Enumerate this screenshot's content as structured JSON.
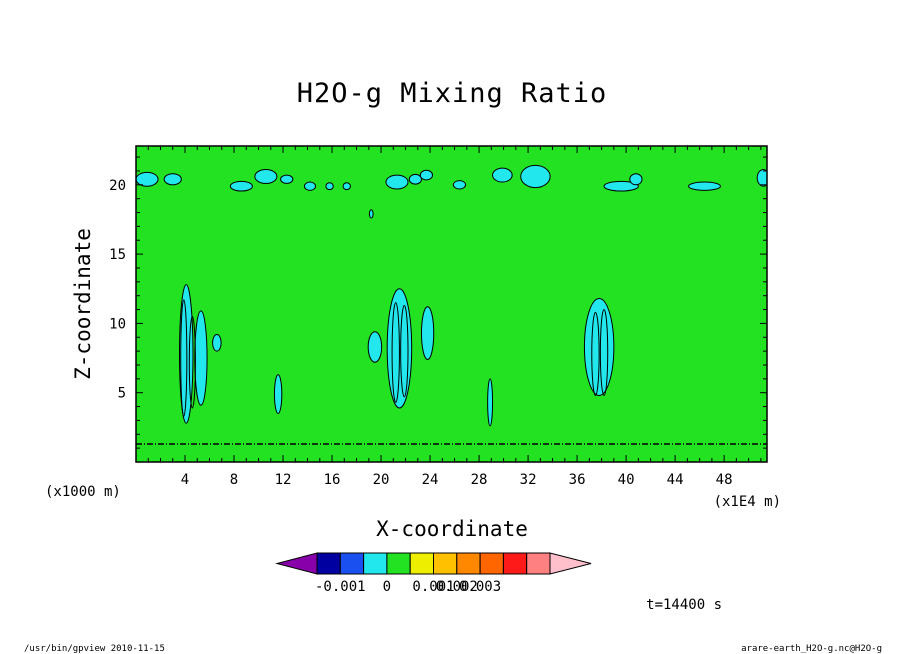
{
  "chart_data": {
    "type": "heatmap",
    "title": "H2O-g Mixing Ratio",
    "xlabel": "X-coordinate",
    "ylabel": "Z-coordinate",
    "x_unit_left": "(x1000 m)",
    "x_unit_right": "(x1E4 m)",
    "xlim": [
      0,
      51.5
    ],
    "ylim": [
      0,
      22.8
    ],
    "x_ticks": [
      4,
      8,
      12,
      16,
      20,
      24,
      28,
      32,
      36,
      40,
      44,
      48
    ],
    "y_ticks": [
      5,
      10,
      15,
      20
    ],
    "time_label": "t=14400 s",
    "background_level_color": "#22e222",
    "cyan_color": "#22e8ee",
    "colorbar": {
      "colors": [
        "#8800aa",
        "#0000a0",
        "#1a4ff0",
        "#22e8ee",
        "#22e222",
        "#eeee00",
        "#ffc000",
        "#ff8800",
        "#ff6600",
        "#ff1a1a",
        "#ff8080",
        "#ffc0cc"
      ],
      "tick_labels": [
        "-0.001",
        "0",
        "0.001",
        "0.002",
        "0.003"
      ],
      "label_after_box": [
        1,
        3,
        5,
        6,
        7
      ]
    },
    "features": [
      {
        "cx": 4.1,
        "cy": 7.8,
        "rx": 0.55,
        "ry": 5.0
      },
      {
        "cx": 5.3,
        "cy": 7.5,
        "rx": 0.5,
        "ry": 3.4
      },
      {
        "cx": 6.6,
        "cy": 8.6,
        "rx": 0.35,
        "ry": 0.6
      },
      {
        "cx": 11.6,
        "cy": 4.9,
        "rx": 0.3,
        "ry": 1.4
      },
      {
        "cx": 19.5,
        "cy": 8.3,
        "rx": 0.55,
        "ry": 1.1
      },
      {
        "cx": 21.5,
        "cy": 8.2,
        "rx": 1.0,
        "ry": 4.3
      },
      {
        "cx": 23.8,
        "cy": 9.3,
        "rx": 0.5,
        "ry": 1.9
      },
      {
        "cx": 28.9,
        "cy": 4.3,
        "rx": 0.2,
        "ry": 1.7
      },
      {
        "cx": 37.8,
        "cy": 8.3,
        "rx": 1.2,
        "ry": 3.5
      },
      {
        "cx": 0.9,
        "cy": 20.4,
        "rx": 0.9,
        "ry": 0.5
      },
      {
        "cx": 3.0,
        "cy": 20.4,
        "rx": 0.7,
        "ry": 0.4
      },
      {
        "cx": 8.6,
        "cy": 19.9,
        "rx": 0.9,
        "ry": 0.35
      },
      {
        "cx": 10.6,
        "cy": 20.6,
        "rx": 0.9,
        "ry": 0.5
      },
      {
        "cx": 12.3,
        "cy": 20.4,
        "rx": 0.5,
        "ry": 0.3
      },
      {
        "cx": 14.2,
        "cy": 19.9,
        "rx": 0.45,
        "ry": 0.3
      },
      {
        "cx": 15.8,
        "cy": 19.9,
        "rx": 0.3,
        "ry": 0.25
      },
      {
        "cx": 17.2,
        "cy": 19.9,
        "rx": 0.3,
        "ry": 0.25
      },
      {
        "cx": 21.3,
        "cy": 20.2,
        "rx": 0.9,
        "ry": 0.5
      },
      {
        "cx": 22.8,
        "cy": 20.4,
        "rx": 0.5,
        "ry": 0.35
      },
      {
        "cx": 23.7,
        "cy": 20.7,
        "rx": 0.5,
        "ry": 0.35
      },
      {
        "cx": 26.4,
        "cy": 20.0,
        "rx": 0.5,
        "ry": 0.3
      },
      {
        "cx": 29.9,
        "cy": 20.7,
        "rx": 0.8,
        "ry": 0.5
      },
      {
        "cx": 32.6,
        "cy": 20.6,
        "rx": 1.2,
        "ry": 0.8
      },
      {
        "cx": 39.6,
        "cy": 19.9,
        "rx": 1.4,
        "ry": 0.35
      },
      {
        "cx": 40.8,
        "cy": 20.4,
        "rx": 0.5,
        "ry": 0.4
      },
      {
        "cx": 46.4,
        "cy": 19.9,
        "rx": 1.3,
        "ry": 0.3
      },
      {
        "cx": 51.2,
        "cy": 20.5,
        "rx": 0.5,
        "ry": 0.6
      },
      {
        "cx": 19.2,
        "cy": 17.9,
        "rx": 0.15,
        "ry": 0.3
      }
    ],
    "contour_lines": [
      {
        "cx": 3.9,
        "cy": 7.5,
        "rx": 0.25,
        "ry": 4.2
      },
      {
        "cx": 4.6,
        "cy": 7.2,
        "rx": 0.25,
        "ry": 3.3
      },
      {
        "cx": 21.2,
        "cy": 7.9,
        "rx": 0.3,
        "ry": 3.6
      },
      {
        "cx": 21.9,
        "cy": 8.0,
        "rx": 0.3,
        "ry": 3.3
      },
      {
        "cx": 37.5,
        "cy": 7.8,
        "rx": 0.3,
        "ry": 3.0
      },
      {
        "cx": 38.2,
        "cy": 7.9,
        "rx": 0.3,
        "ry": 3.1
      }
    ],
    "boundary_line_z": 1.3
  },
  "footer": {
    "left": "/usr/bin/gpview   2010-11-15",
    "right": "arare-earth_H2O-g.nc@H2O-g"
  }
}
